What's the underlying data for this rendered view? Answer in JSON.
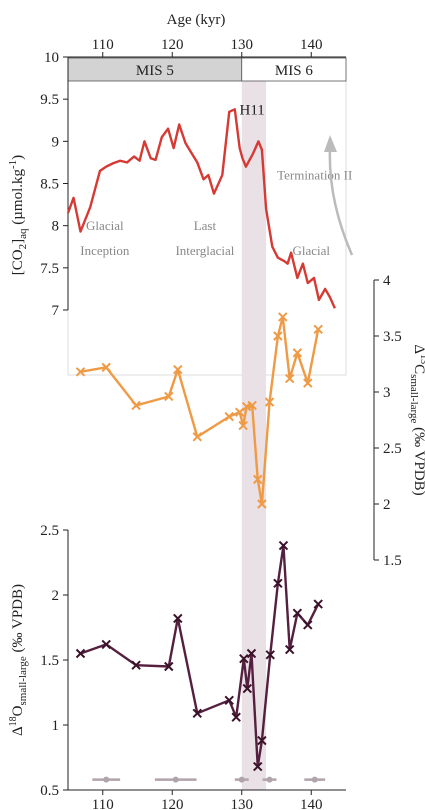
{
  "chart_data": [
    {
      "type": "line",
      "title": "Age (kyr)",
      "xlabel": "Age (kyr)",
      "xlim": [
        105,
        145
      ],
      "xticks": [
        110,
        120,
        130,
        140
      ],
      "ylabel": "[CO2]aq (µmol.kg-1)",
      "ylabel_parts": {
        "main": "[CO",
        "sub": "2",
        "close": "]",
        "subscript": "aq",
        "rest": " (µmol.kg",
        "sup": "-1",
        "end": ")"
      },
      "ylim": [
        7,
        10
      ],
      "yticks": [
        "7",
        "7.5",
        "8",
        "8.5",
        "9",
        "9.5",
        "10"
      ],
      "color": "#d63a34",
      "series": [
        {
          "x": [
            105.0,
            105.8,
            106.8,
            108.2,
            109.6,
            110.5,
            111.5,
            112.5,
            113.5,
            114.5,
            115.3,
            116.0,
            116.9,
            117.6,
            118.5,
            119.4,
            120.2,
            121.0,
            121.9,
            122.7,
            123.6,
            124.5,
            125.2,
            126.0,
            127.2,
            128.2,
            129.0,
            129.7,
            130.1,
            130.6,
            131.6,
            132.4,
            132.9,
            133.5,
            134.4,
            135.2,
            136.1,
            136.6,
            137.1,
            138.0,
            138.8,
            139.5,
            140.4,
            141.1,
            142.0,
            142.7,
            143.4
          ],
          "y": [
            8.15,
            8.33,
            7.93,
            8.22,
            8.65,
            8.7,
            8.74,
            8.77,
            8.75,
            8.82,
            8.77,
            9.0,
            8.8,
            8.78,
            9.05,
            9.15,
            8.92,
            9.2,
            8.98,
            8.87,
            8.75,
            8.55,
            8.6,
            8.38,
            8.6,
            9.35,
            9.38,
            8.92,
            8.8,
            8.7,
            8.85,
            9.0,
            8.9,
            8.2,
            7.75,
            7.62,
            7.58,
            7.55,
            7.68,
            7.38,
            7.55,
            7.32,
            7.38,
            7.12,
            7.25,
            7.15,
            7.02
          ]
        }
      ],
      "annotations": [
        {
          "text": "H11",
          "x": 131.5,
          "y": 9.32
        },
        {
          "text": "Glacial",
          "x": 110.3,
          "y": 7.95
        },
        {
          "text": "Inception",
          "x": 110.3,
          "y": 7.65
        },
        {
          "text": "Last",
          "x": 124.7,
          "y": 7.95
        },
        {
          "text": "Interglacial",
          "x": 124.7,
          "y": 7.65
        },
        {
          "text": "Termination II",
          "x": 140.5,
          "y": 8.55
        },
        {
          "text": "Glacial",
          "x": 140.0,
          "y": 7.65
        }
      ],
      "stages": [
        {
          "label": "MIS 5",
          "from": 105,
          "to": 130,
          "color": "#d3d3d3"
        },
        {
          "label": "MIS 6",
          "from": 130,
          "to": 145,
          "color": "#ffffff"
        }
      ]
    },
    {
      "type": "line",
      "ylabel": "Δ13Csmall-large (‰ VPDB)",
      "ylabel_parts": {
        "pre": "Δ",
        "sup": "13",
        "main": "C",
        "sub": "small-large",
        "rest": " (‰ VPDB)"
      },
      "ylim": [
        1.5,
        4
      ],
      "yticks": [
        "1.5",
        "2",
        "2.5",
        "3",
        "3.5",
        "4"
      ],
      "y_axis_side": "right",
      "color": "#ef9a45",
      "series": [
        {
          "x": [
            106.8,
            110.5,
            114.8,
            119.5,
            120.8,
            123.6,
            128.2,
            129.7,
            130.2,
            130.7,
            131.5,
            132.3,
            132.9,
            134.0,
            135.2,
            135.9,
            136.9,
            138.0,
            139.5,
            141.0
          ],
          "y": [
            3.18,
            3.22,
            2.88,
            2.96,
            3.2,
            2.6,
            2.78,
            2.82,
            2.7,
            2.87,
            2.88,
            2.22,
            2.0,
            2.91,
            3.5,
            3.67,
            3.12,
            3.35,
            3.08,
            3.56
          ]
        }
      ]
    },
    {
      "type": "line",
      "ylabel": "Δ18Osmall-large (‰ VPDB)",
      "ylabel_parts": {
        "pre": "Δ",
        "sup": "18",
        "main": "O",
        "sub": "small-large",
        "rest": " (‰ VPDB)"
      },
      "ylim": [
        0.5,
        2.5
      ],
      "yticks": [
        "0.5",
        "1",
        "1.5",
        "2",
        "2.5"
      ],
      "xticks": [
        110,
        120,
        130,
        140
      ],
      "color": "#55203f",
      "series": [
        {
          "x": [
            106.8,
            110.5,
            114.8,
            119.5,
            120.8,
            123.6,
            128.2,
            129.2,
            130.3,
            130.8,
            131.4,
            132.3,
            132.9,
            134.1,
            135.2,
            136.0,
            136.9,
            138.0,
            139.5,
            141.0
          ],
          "y": [
            1.55,
            1.62,
            1.46,
            1.45,
            1.82,
            1.09,
            1.19,
            1.06,
            1.51,
            1.28,
            1.55,
            0.68,
            0.88,
            1.54,
            2.09,
            2.38,
            1.58,
            1.86,
            1.77,
            1.93
          ]
        }
      ],
      "tie_points": [
        {
          "x": 110.5,
          "xerr": 2.0,
          "y": 0.58
        },
        {
          "x": 120.5,
          "xerr": 3.0,
          "y": 0.58
        },
        {
          "x": 130.0,
          "xerr": 1.0,
          "y": 0.58
        },
        {
          "x": 134.0,
          "xerr": 1.0,
          "y": 0.58
        },
        {
          "x": 140.5,
          "xerr": 1.5,
          "y": 0.58
        }
      ],
      "tie_color": "#b0a3aa"
    }
  ],
  "h11_band": {
    "from": 130,
    "to": 133.5,
    "color": "#e9e1e6"
  }
}
